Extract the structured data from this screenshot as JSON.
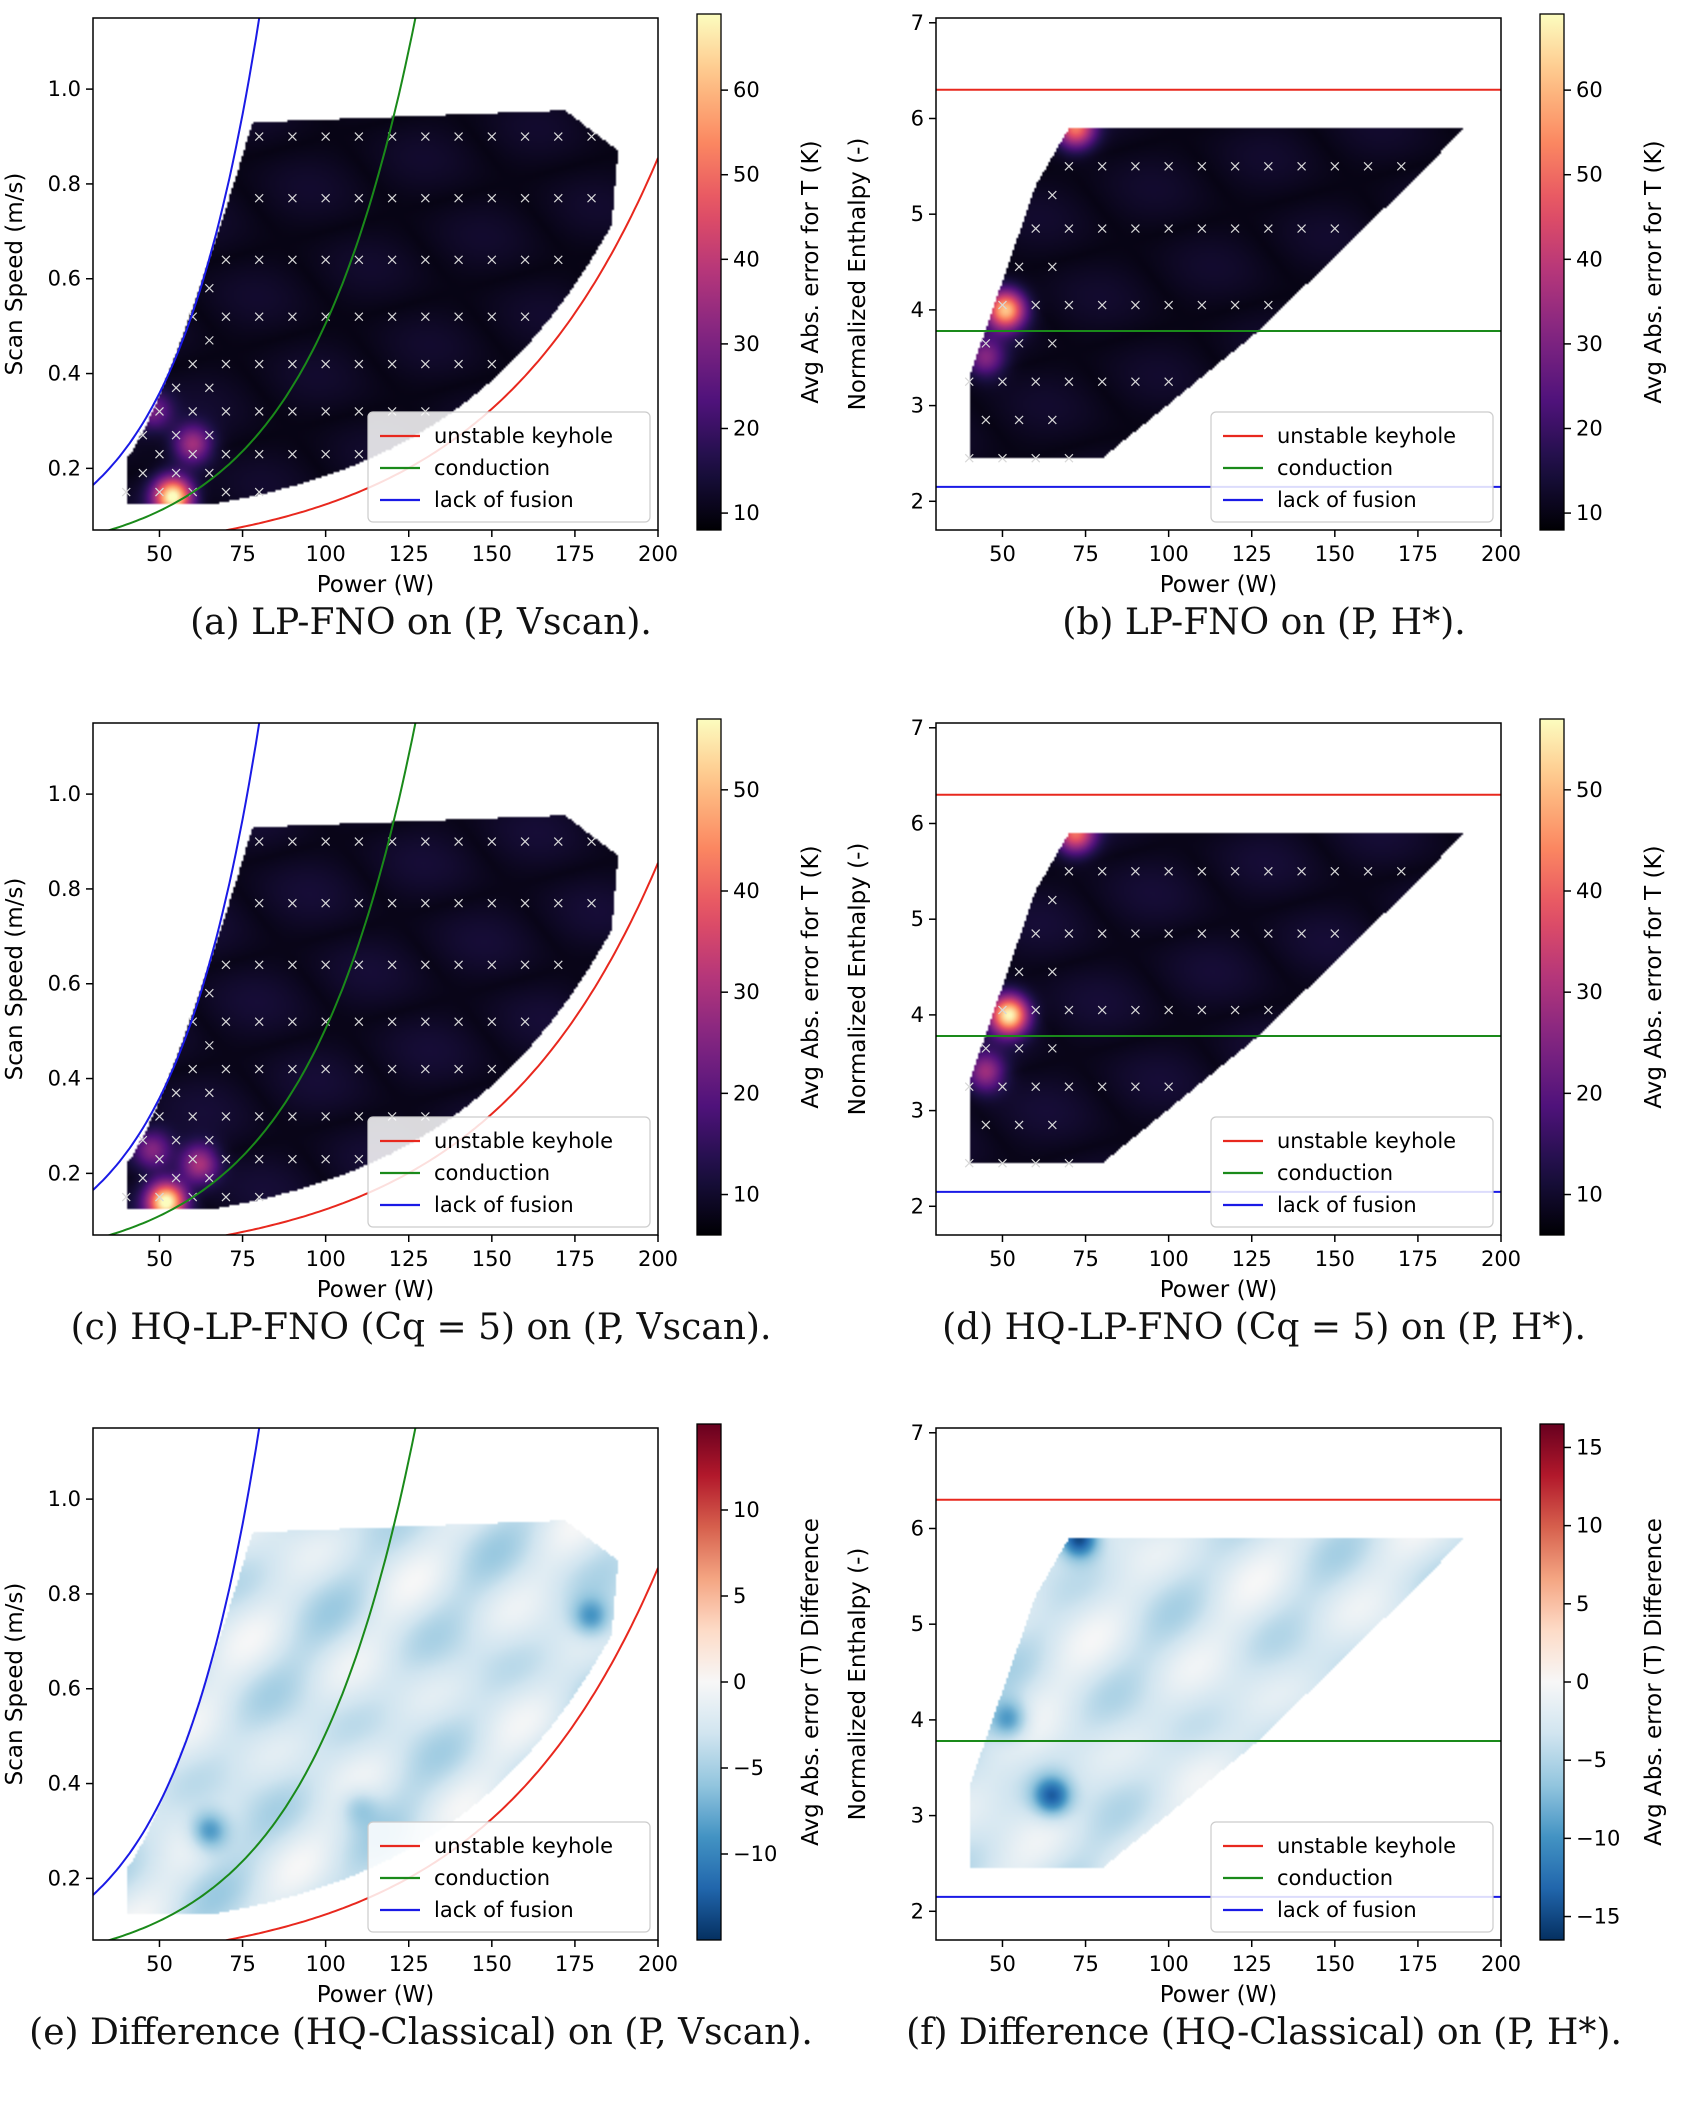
{
  "figure": {
    "captions": [
      "(a) LP-FNO on (P, Vscan).",
      "(b) LP-FNO on (P, H*).",
      "(c) HQ-LP-FNO (Cq = 5) on (P, Vscan).",
      "(d) HQ-LP-FNO (Cq = 5) on (P, H*).",
      "(e) Difference (HQ-Classical) on (P, Vscan).",
      "(f) Difference (HQ-Classical) on (P, H*)."
    ]
  },
  "chart_data": [
    {
      "id": "a",
      "type": "heatmap",
      "space": "vscan",
      "xlabel": "Power (W)",
      "ylabel": "Scan Speed (m/s)",
      "xlim": [
        30,
        200
      ],
      "ylim": [
        0.07,
        1.15
      ],
      "xticks": [
        "50",
        "75",
        "100",
        "125",
        "150",
        "175",
        "200"
      ],
      "yticks": [
        "0.2",
        "0.4",
        "0.6",
        "0.8",
        "1.0"
      ],
      "colorbar": {
        "label": "Avg Abs. error for T (K)",
        "colormap": "magma",
        "range": [
          8,
          69
        ],
        "ticks": [
          "10",
          "20",
          "30",
          "40",
          "50",
          "60"
        ]
      },
      "legend": {
        "position": "lower right",
        "entries": [
          {
            "label": "unstable keyhole",
            "color": "#e8281e"
          },
          {
            "label": "conduction",
            "color": "#1a8a1a"
          },
          {
            "label": "lack of fusion",
            "color": "#1a1ae6"
          }
        ]
      },
      "hotspots": [
        {
          "x": 54,
          "y": 0.14,
          "value": 69
        },
        {
          "x": 60,
          "y": 0.25,
          "value": 35
        },
        {
          "x": 48,
          "y": 0.32,
          "value": 28
        }
      ]
    },
    {
      "id": "b",
      "type": "heatmap",
      "space": "enthalpy",
      "xlabel": "Power (W)",
      "ylabel": "Normalized Enthalpy (-)",
      "xlim": [
        30,
        200
      ],
      "ylim": [
        1.7,
        7.05
      ],
      "xticks": [
        "50",
        "75",
        "100",
        "125",
        "150",
        "175",
        "200"
      ],
      "yticks": [
        "2",
        "3",
        "4",
        "5",
        "6",
        "7"
      ],
      "colorbar": {
        "label": "Avg Abs. error for T (K)",
        "colormap": "magma",
        "range": [
          8,
          69
        ],
        "ticks": [
          "10",
          "20",
          "30",
          "40",
          "50",
          "60"
        ]
      },
      "legend": {
        "position": "lower right",
        "entries": [
          {
            "label": "unstable keyhole",
            "color": "#e8281e"
          },
          {
            "label": "conduction",
            "color": "#1a8a1a"
          },
          {
            "label": "lack of fusion",
            "color": "#1a1ae6"
          }
        ]
      },
      "hlines": [
        {
          "y": 6.3,
          "color": "#e8281e"
        },
        {
          "y": 3.78,
          "color": "#1a8a1a"
        },
        {
          "y": 2.15,
          "color": "#1a1ae6"
        }
      ],
      "hotspots": [
        {
          "x": 51,
          "y": 4.0,
          "value": 60
        },
        {
          "x": 72,
          "y": 5.9,
          "value": 50
        },
        {
          "x": 45,
          "y": 3.5,
          "value": 30
        }
      ]
    },
    {
      "id": "c",
      "type": "heatmap",
      "space": "vscan",
      "xlabel": "Power (W)",
      "ylabel": "Scan Speed (m/s)",
      "xlim": [
        30,
        200
      ],
      "ylim": [
        0.07,
        1.15
      ],
      "xticks": [
        "50",
        "75",
        "100",
        "125",
        "150",
        "175",
        "200"
      ],
      "yticks": [
        "0.2",
        "0.4",
        "0.6",
        "0.8",
        "1.0"
      ],
      "colorbar": {
        "label": "Avg Abs. error for T (K)",
        "colormap": "magma",
        "range": [
          6,
          57
        ],
        "ticks": [
          "10",
          "20",
          "30",
          "40",
          "50"
        ]
      },
      "legend": {
        "position": "lower right",
        "entries": [
          {
            "label": "unstable keyhole",
            "color": "#e8281e"
          },
          {
            "label": "conduction",
            "color": "#1a8a1a"
          },
          {
            "label": "lack of fusion",
            "color": "#1a1ae6"
          }
        ]
      },
      "hotspots": [
        {
          "x": 52,
          "y": 0.14,
          "value": 57
        },
        {
          "x": 62,
          "y": 0.22,
          "value": 30
        },
        {
          "x": 48,
          "y": 0.25,
          "value": 25
        }
      ]
    },
    {
      "id": "d",
      "type": "heatmap",
      "space": "enthalpy",
      "xlabel": "Power (W)",
      "ylabel": "Normalized Enthalpy (-)",
      "xlim": [
        30,
        200
      ],
      "ylim": [
        1.7,
        7.05
      ],
      "xticks": [
        "50",
        "75",
        "100",
        "125",
        "150",
        "175",
        "200"
      ],
      "yticks": [
        "2",
        "3",
        "4",
        "5",
        "6",
        "7"
      ],
      "colorbar": {
        "label": "Avg Abs. error for T (K)",
        "colormap": "magma",
        "range": [
          6,
          57
        ],
        "ticks": [
          "10",
          "20",
          "30",
          "40",
          "50"
        ]
      },
      "legend": {
        "position": "lower right",
        "entries": [
          {
            "label": "unstable keyhole",
            "color": "#e8281e"
          },
          {
            "label": "conduction",
            "color": "#1a8a1a"
          },
          {
            "label": "lack of fusion",
            "color": "#1a1ae6"
          }
        ]
      },
      "hlines": [
        {
          "y": 6.3,
          "color": "#e8281e"
        },
        {
          "y": 3.78,
          "color": "#1a8a1a"
        },
        {
          "y": 2.15,
          "color": "#1a1ae6"
        }
      ],
      "hotspots": [
        {
          "x": 52,
          "y": 4.0,
          "value": 55
        },
        {
          "x": 72,
          "y": 5.9,
          "value": 40
        },
        {
          "x": 45,
          "y": 3.4,
          "value": 28
        }
      ]
    },
    {
      "id": "e",
      "type": "heatmap",
      "space": "vscan",
      "xlabel": "Power (W)",
      "ylabel": "Scan Speed (m/s)",
      "xlim": [
        30,
        200
      ],
      "ylim": [
        0.07,
        1.15
      ],
      "xticks": [
        "50",
        "75",
        "100",
        "125",
        "150",
        "175",
        "200"
      ],
      "yticks": [
        "0.2",
        "0.4",
        "0.6",
        "0.8",
        "1.0"
      ],
      "colorbar": {
        "label": "Avg Abs. error (T) Difference",
        "colormap": "rdbu",
        "range": [
          -15,
          15
        ],
        "ticks": [
          "−10",
          "−5",
          "0",
          "5",
          "10"
        ],
        "tickvalues": [
          -10,
          -5,
          0,
          5,
          10
        ]
      },
      "legend": {
        "position": "lower right",
        "entries": [
          {
            "label": "unstable keyhole",
            "color": "#e8281e"
          },
          {
            "label": "conduction",
            "color": "#1a8a1a"
          },
          {
            "label": "lack of fusion",
            "color": "#1a1ae6"
          }
        ]
      },
      "hotspots": [
        {
          "x": 65,
          "y": 0.3,
          "value": -10
        },
        {
          "x": 180,
          "y": 0.75,
          "value": -9
        },
        {
          "x": 110,
          "y": 0.35,
          "value": -6
        }
      ]
    },
    {
      "id": "f",
      "type": "heatmap",
      "space": "enthalpy",
      "xlabel": "Power (W)",
      "ylabel": "Normalized Enthalpy (-)",
      "xlim": [
        30,
        200
      ],
      "ylim": [
        1.7,
        7.05
      ],
      "xticks": [
        "50",
        "75",
        "100",
        "125",
        "150",
        "175",
        "200"
      ],
      "yticks": [
        "2",
        "3",
        "4",
        "5",
        "6",
        "7"
      ],
      "colorbar": {
        "label": "Avg Abs. error (T) Difference",
        "colormap": "rdbu",
        "range": [
          -16.5,
          16.5
        ],
        "ticks": [
          "−15",
          "−10",
          "−5",
          "0",
          "5",
          "10",
          "15"
        ],
        "tickvalues": [
          -15,
          -10,
          -5,
          0,
          5,
          10,
          15
        ]
      },
      "legend": {
        "position": "lower right",
        "entries": [
          {
            "label": "unstable keyhole",
            "color": "#e8281e"
          },
          {
            "label": "conduction",
            "color": "#1a8a1a"
          },
          {
            "label": "lack of fusion",
            "color": "#1a1ae6"
          }
        ]
      },
      "hlines": [
        {
          "y": 6.3,
          "color": "#e8281e"
        },
        {
          "y": 3.78,
          "color": "#1a8a1a"
        },
        {
          "y": 2.15,
          "color": "#1a1ae6"
        }
      ],
      "hotspots": [
        {
          "x": 73,
          "y": 5.9,
          "value": -16
        },
        {
          "x": 65,
          "y": 3.2,
          "value": -13
        },
        {
          "x": 52,
          "y": 4.0,
          "value": -10
        }
      ]
    }
  ]
}
